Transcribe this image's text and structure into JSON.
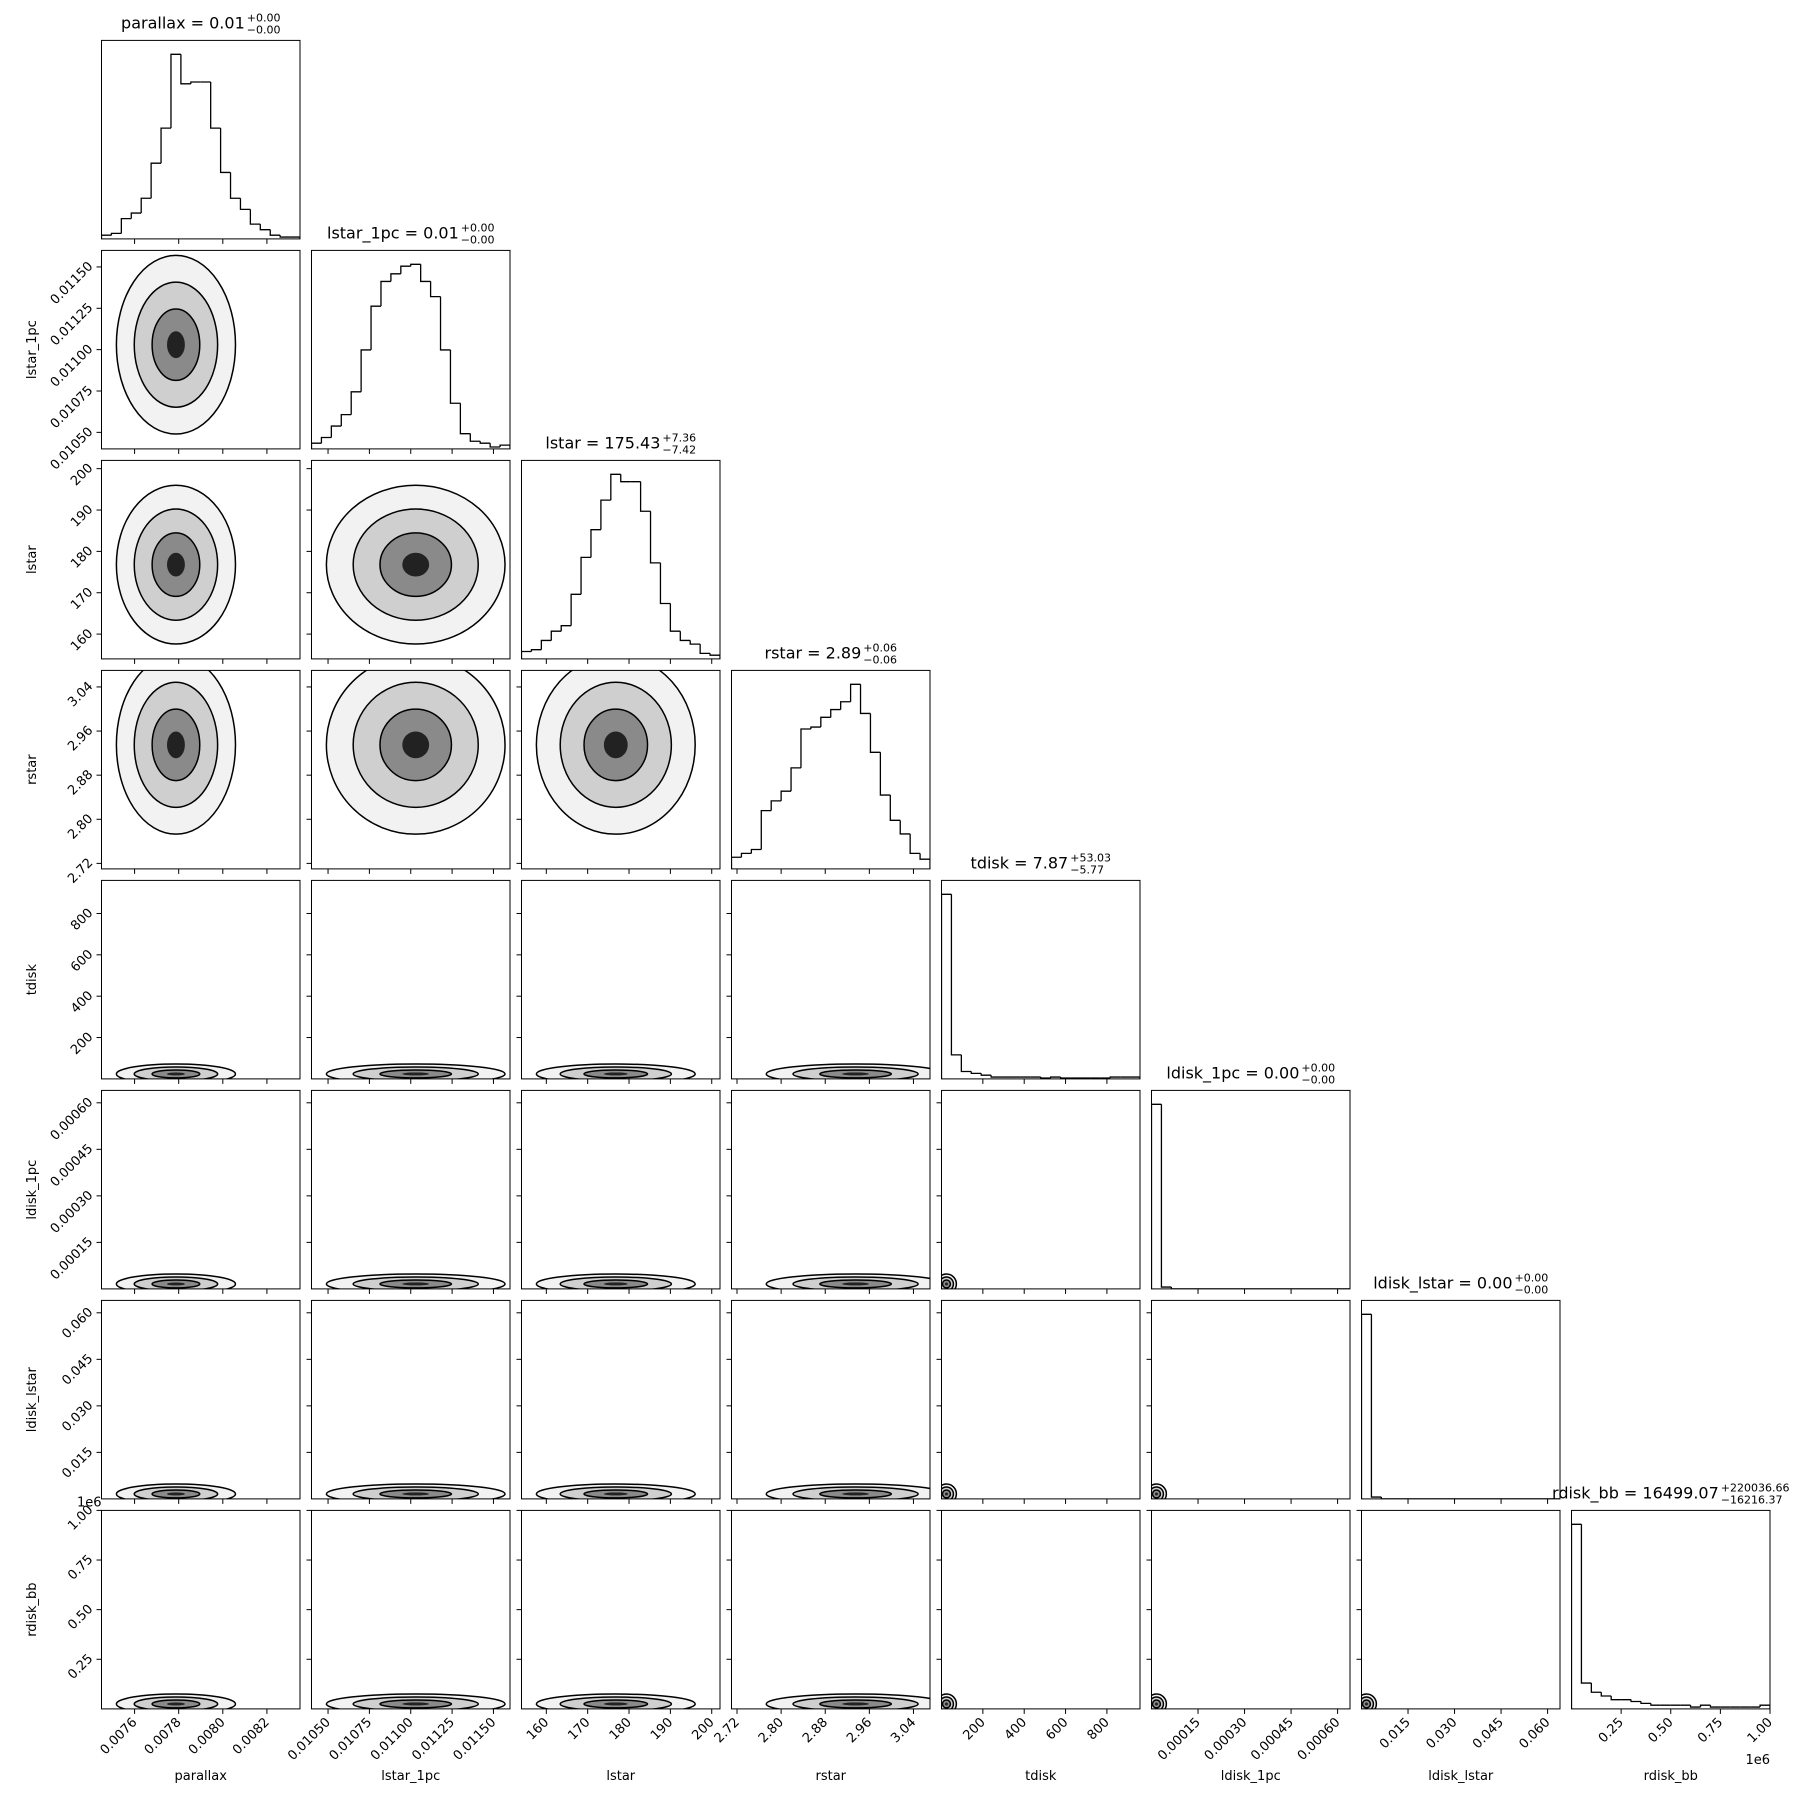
{
  "chart_data": {
    "type": "corner",
    "params": [
      {
        "name": "parallax",
        "title": "parallax = 0.01",
        "err_plus": "+0.00",
        "err_minus": "−0.00",
        "lim": [
          0.00745,
          0.00835
        ],
        "ticks": [
          0.0076,
          0.0078,
          {
            "value": 0.008,
            "label": "0.0080"
          },
          0.0082
        ],
        "bins": [
          0.00745,
          0.007495,
          0.00754,
          0.007585,
          0.00763,
          0.007675,
          0.00772,
          0.007765,
          0.00781,
          0.007855,
          0.0079,
          0.007945,
          0.00799,
          0.008035,
          0.00808,
          0.008125,
          0.00817,
          0.008215,
          0.00826,
          0.008305,
          0.00835
        ],
        "counts": [
          2,
          3,
          11,
          14,
          22,
          41,
          60,
          100,
          84,
          85,
          85,
          60,
          36,
          22,
          16,
          8,
          5,
          2,
          1,
          1
        ]
      },
      {
        "name": "lstar_1pc",
        "title": "lstar_1pc = 0.01",
        "err_plus": "+0.00",
        "err_minus": "−0.00",
        "lim": [
          0.0104,
          0.0116
        ],
        "ticks": [
          {
            "value": 0.0105,
            "label": "0.01050"
          },
          0.01075,
          {
            "value": 0.011,
            "label": "0.01100"
          },
          0.01125,
          {
            "value": 0.0115,
            "label": "0.01150"
          }
        ],
        "bins": [
          0.0104,
          0.01046,
          0.01052,
          0.01058,
          0.01064,
          0.0107,
          0.01076,
          0.01082,
          0.01088,
          0.01094,
          0.011,
          0.01106,
          0.01112,
          0.01118,
          0.01124,
          0.0113,
          0.01136,
          0.01142,
          0.01148,
          0.01154,
          0.0116
        ],
        "counts": [
          3,
          6,
          12,
          18,
          30,
          52,
          75,
          88,
          92,
          96,
          97,
          88,
          80,
          52,
          24,
          8,
          4,
          3,
          1,
          2
        ]
      },
      {
        "name": "lstar",
        "title": "lstar = 175.43",
        "err_plus": "+7.36",
        "err_minus": "−7.42",
        "lim": [
          154,
          202
        ],
        "ticks": [
          160,
          170,
          180,
          190,
          200
        ],
        "bins": [
          154,
          156.4,
          158.8,
          161.2,
          163.6,
          166,
          168.4,
          170.8,
          173.2,
          175.6,
          178,
          180.4,
          182.8,
          185.2,
          187.6,
          190,
          192.4,
          194.8,
          197.2,
          199.6,
          202
        ],
        "counts": [
          4,
          5,
          10,
          15,
          18,
          35,
          55,
          70,
          86,
          100,
          96,
          96,
          80,
          52,
          30,
          15,
          10,
          8,
          3,
          2
        ]
      },
      {
        "name": "rstar",
        "title": "rstar = 2.89",
        "err_plus": "+0.06",
        "err_minus": "−0.06",
        "lim": [
          2.71,
          3.07
        ],
        "ticks": [
          2.72,
          {
            "value": 2.8,
            "label": "2.80"
          },
          2.88,
          2.96,
          3.04
        ],
        "bins": [
          2.71,
          2.728,
          2.746,
          2.764,
          2.782,
          2.8,
          2.818,
          2.836,
          2.854,
          2.872,
          2.89,
          2.908,
          2.926,
          2.944,
          2.962,
          2.98,
          2.998,
          3.016,
          3.034,
          3.052,
          3.07
        ],
        "counts": [
          6,
          8,
          10,
          30,
          35,
          40,
          52,
          72,
          73,
          78,
          82,
          86,
          95,
          80,
          60,
          38,
          25,
          18,
          8,
          5
        ]
      },
      {
        "name": "tdisk",
        "title": "tdisk = 7.87",
        "err_plus": "+53.03",
        "err_minus": "−5.77",
        "lim": [
          0,
          960
        ],
        "ticks": [
          200,
          400,
          600,
          800
        ],
        "bins": [
          0,
          48,
          96,
          144,
          192,
          240,
          288,
          336,
          384,
          432,
          480,
          528,
          576,
          624,
          672,
          720,
          768,
          816,
          864,
          912,
          960
        ],
        "counts": [
          100,
          13,
          4,
          3,
          2,
          1,
          1,
          1,
          1,
          1,
          0.5,
          1,
          0.5,
          0.5,
          0.5,
          0.5,
          0.5,
          1,
          1,
          1
        ]
      },
      {
        "name": "ldisk_1pc",
        "title": "ldisk_1pc = 0.00",
        "err_plus": "+0.00",
        "err_minus": "−0.00",
        "lim": [
          0,
          0.00064
        ],
        "ticks": [
          0.00015,
          {
            "value": 0.0003,
            "label": "0.00030"
          },
          0.00045,
          {
            "value": 0.0006,
            "label": "0.00060"
          }
        ],
        "bins": [
          0,
          3.2e-05,
          6.4e-05,
          9.6e-05,
          0.000128,
          0.00016,
          0.000192,
          0.000224,
          0.000256,
          0.000288,
          0.00032,
          0.000352,
          0.000384,
          0.000416,
          0.000448,
          0.00048,
          0.000512,
          0.000544,
          0.000576,
          0.000608,
          0.00064
        ],
        "counts": [
          100,
          1,
          0,
          0,
          0,
          0,
          0,
          0,
          0,
          0,
          0,
          0,
          0,
          0,
          0,
          0,
          0,
          0,
          0,
          0
        ]
      },
      {
        "name": "ldisk_lstar",
        "title": "ldisk_lstar = 0.00",
        "err_plus": "+0.00",
        "err_minus": "−0.00",
        "lim": [
          0,
          0.064
        ],
        "ticks": [
          0.015,
          {
            "value": 0.03,
            "label": "0.030"
          },
          0.045,
          {
            "value": 0.06,
            "label": "0.060"
          }
        ],
        "bins": [
          0,
          0.0032,
          0.0064,
          0.0096,
          0.0128,
          0.016,
          0.0192,
          0.0224,
          0.0256,
          0.0288,
          0.032,
          0.0352,
          0.0384,
          0.0416,
          0.0448,
          0.048,
          0.0512,
          0.0544,
          0.0576,
          0.0608,
          0.064
        ],
        "counts": [
          100,
          1,
          0,
          0,
          0,
          0,
          0,
          0,
          0,
          0,
          0,
          0,
          0,
          0,
          0,
          0,
          0,
          0,
          0,
          0
        ]
      },
      {
        "name": "rdisk_bb",
        "title": "rdisk_bb = 16499.07",
        "err_plus": "+220036.66",
        "err_minus": "−16216.37",
        "lim": [
          0,
          1.0
        ],
        "offset_text": "1e6",
        "ticks": [
          0.25,
          {
            "value": 0.5,
            "label": "0.50"
          },
          0.75,
          {
            "value": 1,
            "label": "1.00"
          }
        ],
        "bins": [
          0,
          0.05,
          0.1,
          0.15,
          0.2,
          0.25,
          0.3,
          0.35,
          0.4,
          0.45,
          0.5,
          0.55,
          0.6,
          0.65,
          0.7,
          0.75,
          0.8,
          0.85,
          0.9,
          0.95,
          1.0
        ],
        "counts": [
          100,
          14,
          9,
          7,
          5,
          5,
          4,
          3,
          2,
          2,
          2,
          2,
          1,
          2,
          1,
          1,
          1,
          1,
          1,
          2
        ]
      }
    ]
  }
}
